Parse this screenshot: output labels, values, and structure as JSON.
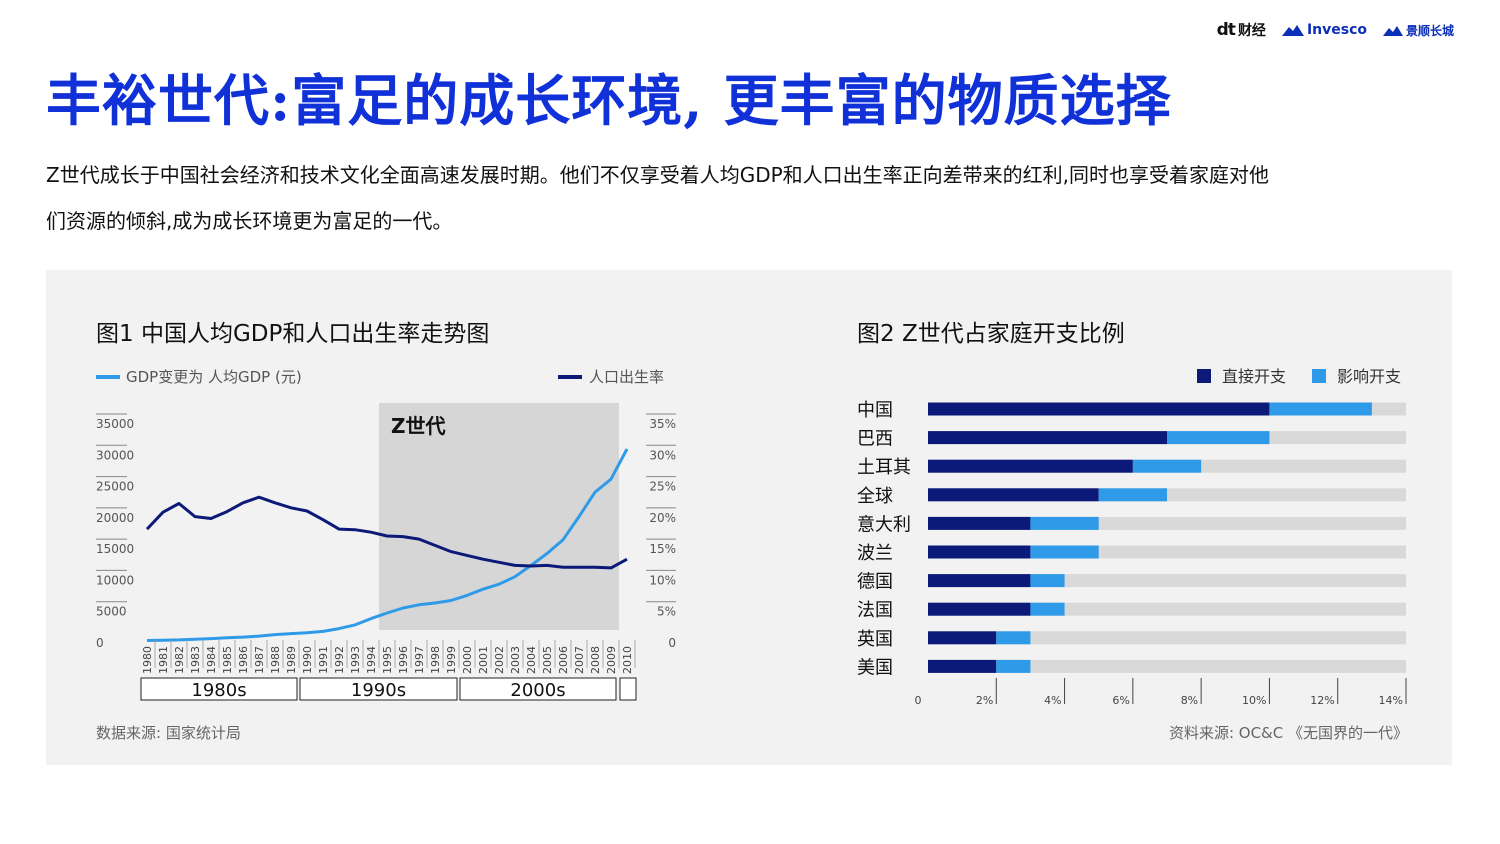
{
  "logos": {
    "dt": "财经",
    "invesco": "Invesco",
    "jingshun": "景顺长城"
  },
  "title": "丰裕世代:富足的成长环境, 更丰富的物质选择",
  "intro": "Z世代成长于中国社会经济和技术文化全面高速发展时期。他们不仅享受着人均GDP和人口出生率正向差带来的红利,同时也享受着家庭对他们资源的倾斜,成为成长环境更为富足的一代。",
  "fig1": {
    "title": "图1  中国人均GDP和人口出生率走势图",
    "source": "数据来源: 国家统计局"
  },
  "fig2": {
    "title": "图2  Z世代占家庭开支比例",
    "source": "资料来源: OC&C 《无国界的一代》"
  },
  "colors": {
    "title": "#1030d8",
    "light_blue": "#2f9be8",
    "navy": "#0b1a78",
    "gray_bar": "#d9d9d9",
    "shade": "#d6d6d6"
  },
  "chart_data": [
    {
      "type": "line",
      "legend": [
        "GDP变更为 人均GDP (元)",
        "人口出生率"
      ],
      "x": [
        "1980",
        "1981",
        "1982",
        "1983",
        "1984",
        "1985",
        "1986",
        "1987",
        "1988",
        "1989",
        "1990",
        "1991",
        "1992",
        "1993",
        "1994",
        "1995",
        "1996",
        "1997",
        "1998",
        "1999",
        "2000",
        "2001",
        "2002",
        "2003",
        "2004",
        "2005",
        "2006",
        "2007",
        "2008",
        "2009",
        "2010"
      ],
      "yleft_ticks": [
        "35000",
        "30000",
        "25000",
        "20000",
        "15000",
        "10000",
        "5000",
        "0"
      ],
      "yleft_lim": [
        0,
        35000
      ],
      "yright_ticks": [
        "35%",
        "30%",
        "25%",
        "20%",
        "15%",
        "10%",
        "5%",
        "0"
      ],
      "yright_lim": [
        0,
        35
      ],
      "shaded_label": "Z世代",
      "shaded_range": [
        "1995",
        "2009"
      ],
      "decades": [
        "1980s",
        "1990s",
        "2000s",
        ""
      ],
      "series": [
        {
          "name": "GDP变更为 人均GDP (元)",
          "axis": "left",
          "values": [
            400,
            450,
            500,
            600,
            700,
            850,
            950,
            1100,
            1350,
            1500,
            1650,
            1850,
            2300,
            2900,
            3900,
            4800,
            5600,
            6100,
            6400,
            6800,
            7600,
            8600,
            9400,
            10600,
            12400,
            14300,
            16500,
            20200,
            24100,
            26200,
            31000
          ]
        },
        {
          "name": "人口出生率",
          "axis": "right",
          "values": [
            18.2,
            20.9,
            22.3,
            20.2,
            19.9,
            21.0,
            22.4,
            23.3,
            22.4,
            21.6,
            21.1,
            19.7,
            18.2,
            18.1,
            17.7,
            17.1,
            17.0,
            16.6,
            15.6,
            14.6,
            14.0,
            13.4,
            12.9,
            12.4,
            12.3,
            12.4,
            12.1,
            12.1,
            12.1,
            12.0,
            13.4
          ]
        }
      ]
    },
    {
      "type": "bar",
      "stacked": true,
      "orientation": "horizontal",
      "legend": [
        "直接开支",
        "影响开支"
      ],
      "categories": [
        "中国",
        "巴西",
        "土耳其",
        "全球",
        "意大利",
        "波兰",
        "德国",
        "法国",
        "英国",
        "美国"
      ],
      "series": [
        {
          "name": "直接开支",
          "values": [
            10.0,
            7.0,
            6.0,
            5.0,
            3.0,
            3.0,
            3.0,
            3.0,
            2.0,
            2.0
          ]
        },
        {
          "name": "影响开支",
          "values": [
            3.0,
            3.0,
            2.0,
            2.0,
            2.0,
            2.0,
            1.0,
            1.0,
            1.0,
            1.0
          ]
        }
      ],
      "xlim": [
        0,
        14
      ],
      "xticks": [
        "0",
        "2%",
        "4%",
        "6%",
        "8%",
        "10%",
        "12%",
        "14%"
      ]
    }
  ]
}
